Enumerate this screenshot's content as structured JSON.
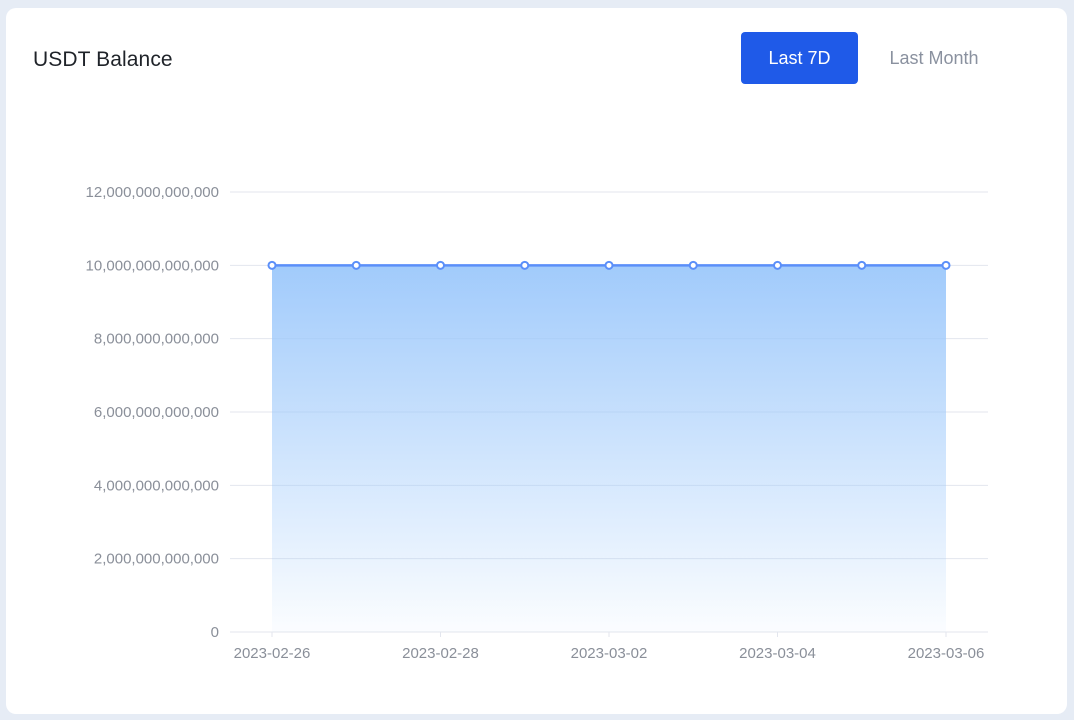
{
  "card": {
    "title": "USDT Balance"
  },
  "controls": {
    "range_buttons": [
      {
        "label": "Last 7D",
        "active": true
      },
      {
        "label": "Last Month",
        "active": false
      }
    ]
  },
  "colors": {
    "accent": "#1f5ae8",
    "line": "#5b8ff9",
    "area_top": "#9cc8fb",
    "grid": "#e3e6ee",
    "tick": "#8a8f99"
  },
  "chart_data": {
    "type": "area",
    "title": "USDT Balance",
    "xlabel": "",
    "ylabel": "",
    "x": [
      "2023-02-26",
      "2023-02-27",
      "2023-02-28",
      "2023-03-01",
      "2023-03-02",
      "2023-03-03",
      "2023-03-04",
      "2023-03-05",
      "2023-03-06"
    ],
    "x_tick_labels": [
      "2023-02-26",
      "2023-02-28",
      "2023-03-02",
      "2023-03-04",
      "2023-03-06"
    ],
    "series": [
      {
        "values": [
          10000000000000,
          10000000000000,
          10000000000000,
          10000000000000,
          10000000000000,
          10000000000000,
          10000000000000,
          10000000000000,
          10000000000000
        ]
      }
    ],
    "ylim": [
      0,
      12000000000000
    ],
    "y_ticks": [
      0,
      2000000000000,
      4000000000000,
      6000000000000,
      8000000000000,
      10000000000000,
      12000000000000
    ],
    "y_tick_labels": [
      "0",
      "2,000,000,000,000",
      "4,000,000,000,000",
      "6,000,000,000,000",
      "8,000,000,000,000",
      "10,000,000,000,000",
      "12,000,000,000,000"
    ],
    "grid": true,
    "legend": "none"
  }
}
